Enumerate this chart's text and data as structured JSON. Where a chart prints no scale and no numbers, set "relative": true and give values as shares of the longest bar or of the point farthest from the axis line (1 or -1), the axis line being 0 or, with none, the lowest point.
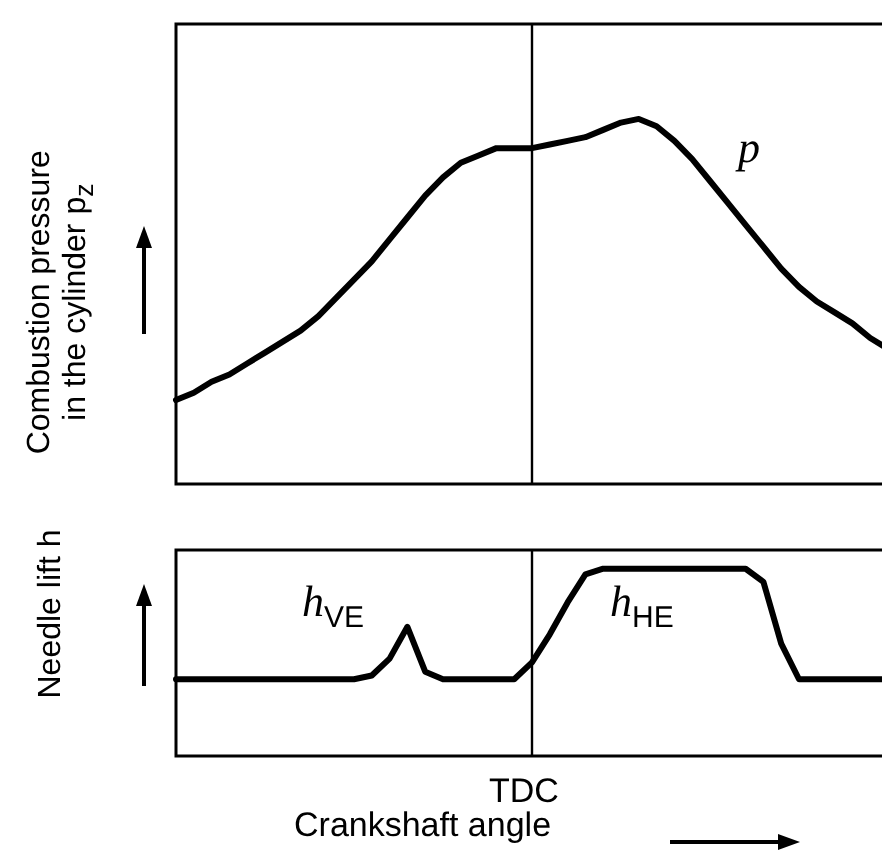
{
  "chart_data": [
    {
      "type": "line",
      "relative": true,
      "ylabel": "Combustion pressure in the cylinder p$_{z}$",
      "categories": [
        null,
        null,
        null,
        null,
        null,
        null,
        null,
        null,
        null,
        null,
        null,
        null,
        null,
        null,
        null,
        null,
        null,
        null,
        null,
        null,
        null,
        null,
        null,
        null,
        null,
        null,
        null,
        null,
        null,
        null,
        null,
        null,
        null,
        null,
        null,
        null,
        null,
        null,
        null,
        null,
        null
      ],
      "series": [
        {
          "name": "p",
          "color": "#000000",
          "values": [
            0.23,
            0.25,
            0.28,
            0.3,
            0.33,
            0.36,
            0.39,
            0.42,
            0.46,
            0.51,
            0.56,
            0.61,
            0.67,
            0.73,
            0.79,
            0.84,
            0.88,
            0.9,
            0.92,
            0.92,
            0.92,
            0.93,
            0.94,
            0.95,
            0.97,
            0.99,
            1,
            0.98,
            0.94,
            0.89,
            0.83,
            0.77,
            0.71,
            0.65,
            0.59,
            0.54,
            0.5,
            0.47,
            0.44,
            0.4,
            0.37
          ]
        }
      ]
    },
    {
      "type": "line",
      "relative": true,
      "ylabel": "Needle lift h",
      "xlabel": "Crankshaft angle",
      "categories": [
        null,
        null,
        null,
        null,
        null,
        null,
        null,
        null,
        null,
        null,
        null,
        null,
        null,
        null,
        null,
        null,
        null,
        null,
        null,
        null,
        null,
        null,
        null,
        null,
        null,
        null,
        null,
        null,
        null,
        null,
        null,
        null,
        null,
        null,
        null,
        null,
        null,
        null,
        null,
        null,
        null
      ],
      "series": [
        {
          "color": "#000000",
          "values": [
            0.41,
            0.41,
            0.41,
            0.41,
            0.41,
            0.41,
            0.41,
            0.41,
            0.41,
            0.41,
            0.41,
            0.43,
            0.52,
            0.69,
            0.45,
            0.41,
            0.41,
            0.41,
            0.41,
            0.41,
            0.5,
            0.65,
            0.82,
            0.97,
            1,
            1,
            1,
            1,
            1,
            1,
            1,
            1,
            1,
            0.93,
            0.6,
            0.41,
            0.41,
            0.41,
            0.41,
            0.41,
            0.41
          ]
        }
      ],
      "annotations": [
        "h$_{VE}$",
        "h$_{HE}$",
        "TDC"
      ]
    }
  ]
}
